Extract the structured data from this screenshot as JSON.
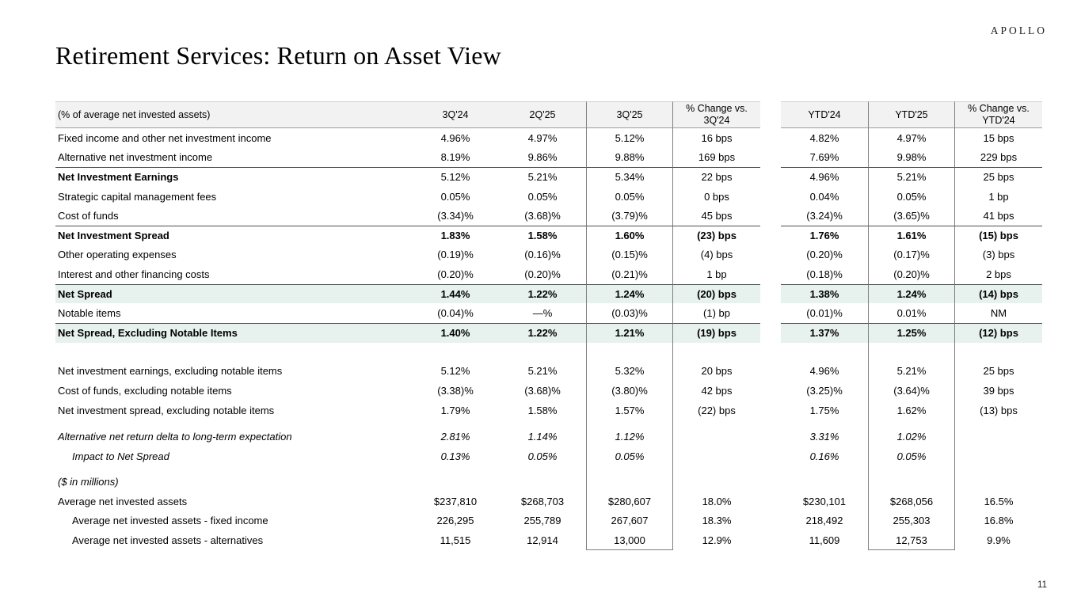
{
  "logo": "APOLLO",
  "title": "Retirement Services: Return on Asset View",
  "page_number": "11",
  "colors": {
    "header_band_bg": "#f2f2f2",
    "highlight_row_bg": "#e7f1ed",
    "dark_rule": "#4d4d4d",
    "box_border": "#7f7f7f"
  },
  "table": {
    "header": {
      "label": "(% of average net invested assets)",
      "cols": [
        "3Q'24",
        "2Q'25",
        "3Q'25",
        "% Change vs.\n3Q'24",
        "YTD'24",
        "YTD'25",
        "% Change vs.\nYTD'24"
      ]
    },
    "rows": [
      {
        "label": "Fixed income and other net investment income",
        "values": [
          "4.96%",
          "4.97%",
          "5.12%",
          "16 bps",
          "4.82%",
          "4.97%",
          "15 bps"
        ]
      },
      {
        "label": "Alternative net investment income",
        "values": [
          "8.19%",
          "9.86%",
          "9.88%",
          "169 bps",
          "7.69%",
          "9.98%",
          "229 bps"
        ]
      },
      {
        "label": "Net Investment Earnings",
        "values": [
          "5.12%",
          "5.21%",
          "5.34%",
          "22 bps",
          "4.96%",
          "5.21%",
          "25 bps"
        ],
        "bold_label": true,
        "top_line": true
      },
      {
        "label": "Strategic capital management fees",
        "values": [
          "0.05%",
          "0.05%",
          "0.05%",
          "0 bps",
          "0.04%",
          "0.05%",
          "1 bp"
        ]
      },
      {
        "label": "Cost of funds",
        "values": [
          "(3.34)%",
          "(3.68)%",
          "(3.79)%",
          "45 bps",
          "(3.24)%",
          "(3.65)%",
          "41 bps"
        ]
      },
      {
        "label": "Net Investment Spread",
        "values": [
          "1.83%",
          "1.58%",
          "1.60%",
          "(23) bps",
          "1.76%",
          "1.61%",
          "(15) bps"
        ],
        "bold_label": true,
        "bold_values": true,
        "top_line": true
      },
      {
        "label": "Other operating expenses",
        "values": [
          "(0.19)%",
          "(0.16)%",
          "(0.15)%",
          "(4) bps",
          "(0.20)%",
          "(0.17)%",
          "(3) bps"
        ]
      },
      {
        "label": "Interest and other financing costs",
        "values": [
          "(0.20)%",
          "(0.20)%",
          "(0.21)%",
          "1 bp",
          "(0.18)%",
          "(0.20)%",
          "2 bps"
        ]
      },
      {
        "label": "Net Spread",
        "values": [
          "1.44%",
          "1.22%",
          "1.24%",
          "(20) bps",
          "1.38%",
          "1.24%",
          "(14) bps"
        ],
        "bold_label": true,
        "bold_values": true,
        "top_line": true,
        "highlight": true
      },
      {
        "label": "Notable items",
        "values": [
          "(0.04)%",
          "—%",
          "(0.03)%",
          "(1) bp",
          "(0.01)%",
          "0.01%",
          "NM"
        ]
      },
      {
        "label": "Net Spread, Excluding Notable Items",
        "values": [
          "1.40%",
          "1.22%",
          "1.21%",
          "(19) bps",
          "1.37%",
          "1.25%",
          "(12) bps"
        ],
        "bold_label": true,
        "bold_values": true,
        "top_line": true,
        "highlight": true
      },
      {
        "spacer": 24
      },
      {
        "label": "Net investment earnings, excluding notable items",
        "values": [
          "5.12%",
          "5.21%",
          "5.32%",
          "20 bps",
          "4.96%",
          "5.21%",
          "25 bps"
        ]
      },
      {
        "label": "Cost of funds, excluding notable items",
        "values": [
          "(3.38)%",
          "(3.68)%",
          "(3.80)%",
          "42 bps",
          "(3.25)%",
          "(3.64)%",
          "39 bps"
        ]
      },
      {
        "label": "Net investment spread, excluding notable items",
        "values": [
          "1.79%",
          "1.58%",
          "1.57%",
          "(22) bps",
          "1.75%",
          "1.62%",
          "(13) bps"
        ]
      },
      {
        "spacer": 9
      },
      {
        "label": "Alternative net return delta to long-term expectation",
        "values": [
          "2.81%",
          "1.14%",
          "1.12%",
          "",
          "3.31%",
          "1.02%",
          ""
        ],
        "italic": true
      },
      {
        "label": "Impact to Net Spread",
        "values": [
          "0.13%",
          "0.05%",
          "0.05%",
          "",
          "0.16%",
          "0.05%",
          ""
        ],
        "italic": true,
        "indent": true
      },
      {
        "spacer": 8
      },
      {
        "label": "($ in millions)",
        "values": [
          "",
          "",
          "",
          "",
          "",
          "",
          ""
        ],
        "italic": true
      },
      {
        "label": "Average net invested assets",
        "values": [
          "$237,810",
          "$268,703",
          "$280,607",
          "18.0%",
          "$230,101",
          "$268,056",
          "16.5%"
        ]
      },
      {
        "label": "Average net invested assets - fixed income",
        "values": [
          "226,295",
          "255,789",
          "267,607",
          "18.3%",
          "218,492",
          "255,303",
          "16.8%"
        ],
        "indent": true
      },
      {
        "label": "Average net invested assets - alternatives",
        "values": [
          "11,515",
          "12,914",
          "13,000",
          "12.9%",
          "11,609",
          "12,753",
          "9.9%"
        ],
        "indent": true
      }
    ]
  }
}
